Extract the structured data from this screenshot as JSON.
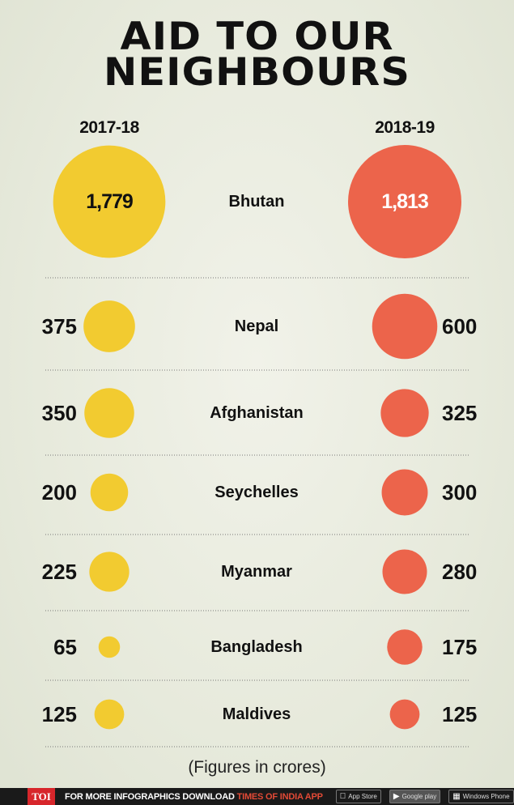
{
  "title_line1": "AID TO OUR",
  "title_line2": "NEIGHBOURS",
  "note": "(Figures in crores)",
  "footer": {
    "logo": "TOI",
    "text_prefix": "FOR MORE  INFOGRAPHICS DOWNLOAD ",
    "text_app": "TIMES OF INDIA APP",
    "app_store": "App Store",
    "google_play": "Google play",
    "windows_phone": "Windows Phone"
  },
  "colors": {
    "y2017": "#f2cb30",
    "y2018": "#ec644b",
    "divider": "#777777"
  },
  "chart_data": {
    "type": "bubble",
    "series": [
      {
        "name": "2017-18",
        "values": [
          1779,
          375,
          350,
          200,
          225,
          65,
          125
        ]
      },
      {
        "name": "2018-19",
        "values": [
          1813,
          600,
          325,
          300,
          280,
          175,
          125
        ]
      }
    ],
    "categories": [
      "Bhutan",
      "Nepal",
      "Afghanistan",
      "Seychelles",
      "Myanmar",
      "Bangladesh",
      "Maldives"
    ],
    "labels_2017": [
      "1,779",
      "375",
      "350",
      "200",
      "225",
      "65",
      "125"
    ],
    "labels_2018": [
      "1,813",
      "600",
      "325",
      "300",
      "280",
      "175",
      "125"
    ],
    "unit": "crores"
  }
}
